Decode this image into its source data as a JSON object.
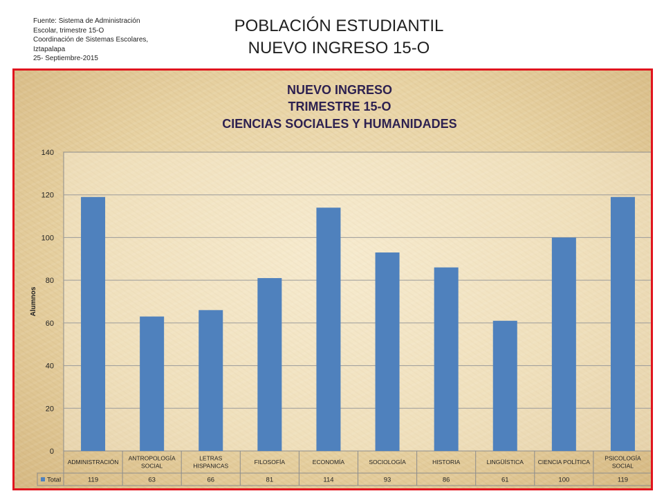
{
  "source_note": {
    "lines": [
      "Fuente: Sistema de Administración",
      "Escolar, trimestre 15-O",
      "Coordinación de Sistemas Escolares,",
      "Iztapalapa",
      "25- Septiembre-2015"
    ]
  },
  "slide_title": {
    "line1": "POBLACIÓN ESTUDIANTIL",
    "line2": "NUEVO INGRESO 15-O"
  },
  "colors": {
    "bar": "#4f81bd",
    "frame_border": "#e0141e",
    "chart_title": "#2d2150"
  },
  "chart_data": {
    "type": "bar",
    "title": [
      "NUEVO INGRESO",
      "TRIMESTRE 15-O",
      "CIENCIAS SOCIALES Y HUMANIDADES"
    ],
    "ylabel": "Alumnos",
    "ylim": [
      0,
      140
    ],
    "yticks": [
      0,
      20,
      40,
      60,
      80,
      100,
      120,
      140
    ],
    "grid": true,
    "data_table": true,
    "categories": [
      [
        "ADMINISTRACIÓN"
      ],
      [
        "ANTROPOLOGÍA",
        "SOCIAL"
      ],
      [
        "LETRAS",
        "HISPANICAS"
      ],
      [
        "FILOSOFÍA"
      ],
      [
        "ECONOMÍA"
      ],
      [
        "SOCIOLOGÍA"
      ],
      [
        "HISTORIA"
      ],
      [
        "LINGÜÍSTICA"
      ],
      [
        "CIENCIA POLÍTICA"
      ],
      [
        "PSICOLOGÍA",
        "SOCIAL"
      ]
    ],
    "series": [
      {
        "name": "Total",
        "values": [
          119,
          63,
          66,
          81,
          114,
          93,
          86,
          61,
          100,
          119
        ]
      }
    ]
  }
}
